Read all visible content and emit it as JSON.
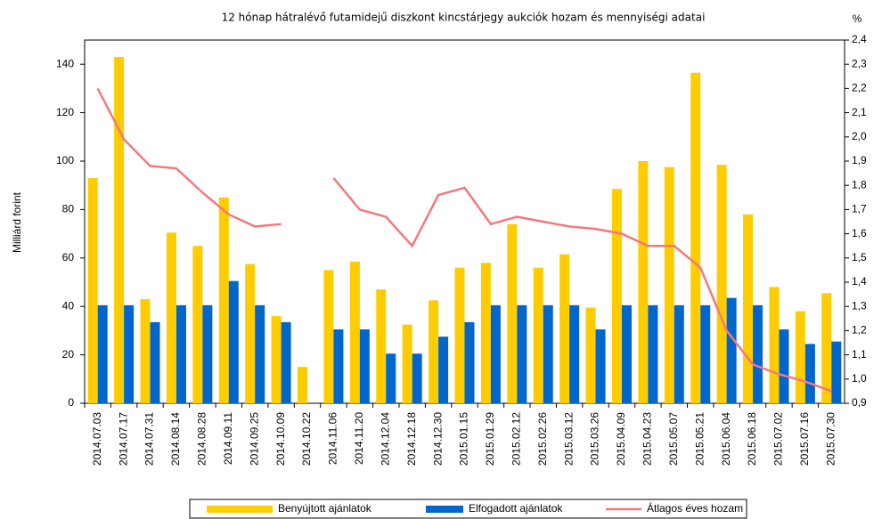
{
  "chart_data": {
    "type": "bar",
    "title": "12 hónap hátralévő futamidejű diszkont kincstárjegy aukciók hozam és mennyiségi adatai",
    "ylabel": "Milliárd forint",
    "y2label": "%",
    "categories": [
      "2014.07.03",
      "2014.07.17",
      "2014.07.31",
      "2014.08.14",
      "2014.08.28",
      "2014.09.11",
      "2014.09.25",
      "2014.10.09",
      "2014.10.22",
      "2014.11.06",
      "2014.11.20",
      "2014.12.04",
      "2014.12.18",
      "2014.12.30",
      "2015.01.15",
      "2015.01.29",
      "2015.02.12",
      "2015.02.26",
      "2015.03.12",
      "2015.03.26",
      "2015.04.09",
      "2015.04.23",
      "2015.05.07",
      "2015.05.21",
      "2015.06.04",
      "2015.06.18",
      "2015.07.02",
      "2015.07.16",
      "2015.07.30"
    ],
    "series": [
      {
        "name": "Benyújtott ajánlatok",
        "color": "#ffcc00",
        "type": "bar",
        "values": [
          93,
          143,
          43,
          70.5,
          65,
          85,
          57.5,
          36,
          15,
          55,
          58.5,
          47,
          32.5,
          42.5,
          56,
          58,
          74,
          56,
          61.5,
          39.5,
          88.5,
          100,
          97.5,
          136.5,
          98.5,
          78,
          48,
          38,
          45.5
        ]
      },
      {
        "name": "Elfogadott ajánlatok",
        "color": "#0066cc",
        "type": "bar",
        "values": [
          40.5,
          40.5,
          33.5,
          40.5,
          40.5,
          50.5,
          40.5,
          33.5,
          null,
          30.5,
          30.5,
          20.5,
          20.5,
          27.5,
          33.5,
          40.5,
          40.5,
          40.5,
          40.5,
          30.5,
          40.5,
          40.5,
          40.5,
          40.5,
          43.5,
          40.5,
          30.5,
          24.5,
          25.5
        ]
      },
      {
        "name": "Átlagos éves hozam",
        "color": "#f4787c",
        "type": "line",
        "axis": "y2",
        "values": [
          2.2,
          1.99,
          1.88,
          1.87,
          1.77,
          1.68,
          1.63,
          1.64,
          null,
          1.83,
          1.7,
          1.67,
          1.55,
          1.76,
          1.79,
          1.64,
          1.67,
          1.65,
          1.63,
          1.62,
          1.6,
          1.55,
          1.55,
          1.46,
          1.2,
          1.06,
          1.02,
          0.99,
          0.95
        ]
      }
    ],
    "ylim": [
      0,
      150
    ],
    "yticks": [
      0,
      20,
      40,
      60,
      80,
      100,
      120,
      140
    ],
    "y2lim": [
      0.9,
      2.4
    ],
    "y2ticks": [
      {
        "value": 0.9,
        "label": "0,9"
      },
      {
        "value": 1.0,
        "label": "1,0"
      },
      {
        "value": 1.1,
        "label": "1,1"
      },
      {
        "value": 1.2,
        "label": "1,2"
      },
      {
        "value": 1.3,
        "label": "1,3"
      },
      {
        "value": 1.4,
        "label": "1,4"
      },
      {
        "value": 1.5,
        "label": "1,5"
      },
      {
        "value": 1.6,
        "label": "1,6"
      },
      {
        "value": 1.7,
        "label": "1,7"
      },
      {
        "value": 1.8,
        "label": "1,8"
      },
      {
        "value": 1.9,
        "label": "1,9"
      },
      {
        "value": 2.0,
        "label": "2,0"
      },
      {
        "value": 2.1,
        "label": "2,1"
      },
      {
        "value": 2.2,
        "label": "2,2"
      },
      {
        "value": 2.3,
        "label": "2,3"
      },
      {
        "value": 2.4,
        "label": "2,4"
      }
    ],
    "grid": false,
    "legend": "bottom"
  }
}
